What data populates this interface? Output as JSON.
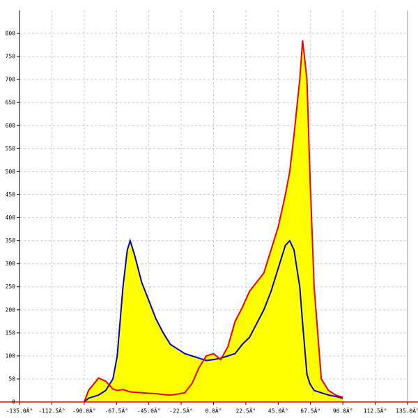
{
  "chart_data": {
    "type": "area",
    "x": [
      -90,
      -87,
      -80,
      -75,
      -70,
      -67,
      -63,
      -60,
      -58,
      -55,
      -50,
      -45,
      -40,
      -35,
      -30,
      -25,
      -20,
      -15,
      -10,
      -5,
      0,
      5,
      10,
      15,
      20,
      25,
      30,
      35,
      40,
      45,
      50,
      53,
      56,
      60,
      62,
      65,
      67,
      70,
      75,
      80,
      85,
      90
    ],
    "series": [
      {
        "color": "#0000cc",
        "values": [
          0,
          8,
          15,
          25,
          50,
          100,
          250,
          330,
          350,
          320,
          260,
          220,
          180,
          150,
          125,
          115,
          105,
          100,
          95,
          90,
          92,
          95,
          100,
          105,
          125,
          140,
          170,
          200,
          240,
          290,
          340,
          350,
          330,
          250,
          170,
          60,
          40,
          25,
          20,
          15,
          12,
          8
        ]
      },
      {
        "color": "#ee0000",
        "values": [
          0,
          25,
          52,
          45,
          28,
          25,
          27,
          24,
          22,
          21,
          20,
          19,
          18,
          16,
          15,
          17,
          20,
          40,
          75,
          100,
          105,
          92,
          120,
          175,
          205,
          240,
          260,
          280,
          330,
          380,
          450,
          500,
          580,
          700,
          785,
          700,
          500,
          250,
          50,
          25,
          15,
          10
        ]
      }
    ],
    "fill_color": "#ffff00",
    "xlim": [
      -135,
      135
    ],
    "xticks": [
      {
        "value": -135,
        "label": "-135.0Â°"
      },
      {
        "value": -112.5,
        "label": "-112.5Â°"
      },
      {
        "value": -90,
        "label": "-90.0Â°"
      },
      {
        "value": -67.5,
        "label": "-67.5Â°"
      },
      {
        "value": -45,
        "label": "-45.0Â°"
      },
      {
        "value": -22.5,
        "label": "-22.5Â°"
      },
      {
        "value": 0,
        "label": "0.0Â°"
      },
      {
        "value": 22.5,
        "label": "22.5Â°"
      },
      {
        "value": 45,
        "label": "45.0Â°"
      },
      {
        "value": 67.5,
        "label": "67.5Â°"
      },
      {
        "value": 90,
        "label": "90.0Â°"
      },
      {
        "value": 112.5,
        "label": "112.5Â°"
      },
      {
        "value": 135,
        "label": "135.0Â°"
      }
    ],
    "ylim": [
      0,
      850
    ],
    "yticks": [
      0,
      50,
      100,
      150,
      200,
      250,
      300,
      350,
      400,
      450,
      500,
      550,
      600,
      650,
      700,
      750,
      800
    ],
    "grid": true
  }
}
